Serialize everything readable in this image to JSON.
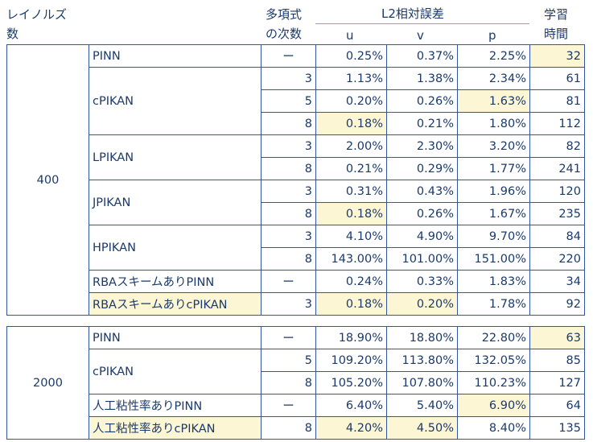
{
  "header": {
    "reynolds_line1": "レイノルズ",
    "reynolds_line2": "数",
    "degree_line1": "多項式",
    "degree_line2": "の次数",
    "error_group": "L2相対誤差",
    "col_u": "u",
    "col_v": "v",
    "col_p": "p",
    "time_line1": "学習",
    "time_line2": "時間"
  },
  "table1": {
    "reynolds": "400",
    "rows": [
      {
        "method": "PINN",
        "degree": "ー",
        "u": "0.25%",
        "v": "0.37%",
        "p": "2.25%",
        "time": "32"
      },
      {
        "method": "cPIKAN",
        "degree": "3",
        "u": "1.13%",
        "v": "1.38%",
        "p": "2.34%",
        "time": "61"
      },
      {
        "method": "",
        "degree": "5",
        "u": "0.20%",
        "v": "0.26%",
        "p": "1.63%",
        "time": "81"
      },
      {
        "method": "",
        "degree": "8",
        "u": "0.18%",
        "v": "0.21%",
        "p": "1.80%",
        "time": "112"
      },
      {
        "method": "LPIKAN",
        "degree": "3",
        "u": "2.00%",
        "v": "2.30%",
        "p": "3.20%",
        "time": "82"
      },
      {
        "method": "",
        "degree": "8",
        "u": "0.21%",
        "v": "0.29%",
        "p": "1.77%",
        "time": "241"
      },
      {
        "method": "JPIKAN",
        "degree": "3",
        "u": "0.31%",
        "v": "0.43%",
        "p": "1.96%",
        "time": "120"
      },
      {
        "method": "",
        "degree": "8",
        "u": "0.18%",
        "v": "0.26%",
        "p": "1.67%",
        "time": "235"
      },
      {
        "method": "HPIKAN",
        "degree": "3",
        "u": "4.10%",
        "v": "4.90%",
        "p": "9.70%",
        "time": "84"
      },
      {
        "method": "",
        "degree": "8",
        "u": "143.00%",
        "v": "101.00%",
        "p": "151.00%",
        "time": "220"
      },
      {
        "method": "RBAスキームありPINN",
        "degree": "ー",
        "u": "0.24%",
        "v": "0.33%",
        "p": "1.83%",
        "time": "34"
      },
      {
        "method": "RBAスキームありcPIKAN",
        "degree": "3",
        "u": "0.18%",
        "v": "0.20%",
        "p": "1.78%",
        "time": "92"
      }
    ]
  },
  "table2": {
    "reynolds": "2000",
    "rows": [
      {
        "method": "PINN",
        "degree": "ー",
        "u": "18.90%",
        "v": "18.80%",
        "p": "22.80%",
        "time": "63"
      },
      {
        "method": "cPIKAN",
        "degree": "5",
        "u": "109.20%",
        "v": "113.80%",
        "p": "132.05%",
        "time": "85"
      },
      {
        "method": "",
        "degree": "8",
        "u": "105.20%",
        "v": "107.80%",
        "p": "110.23%",
        "time": "127"
      },
      {
        "method": "人工粘性率ありPINN",
        "degree": "ー",
        "u": "6.40%",
        "v": "5.40%",
        "p": "6.90%",
        "time": "64"
      },
      {
        "method": "人工粘性率ありcPIKAN",
        "degree": "8",
        "u": "4.20%",
        "v": "4.50%",
        "p": "8.40%",
        "time": "135"
      }
    ]
  },
  "colors": {
    "border": "#2f56a6",
    "highlight": "#fdf6d5",
    "text": "#1a3a6b"
  }
}
